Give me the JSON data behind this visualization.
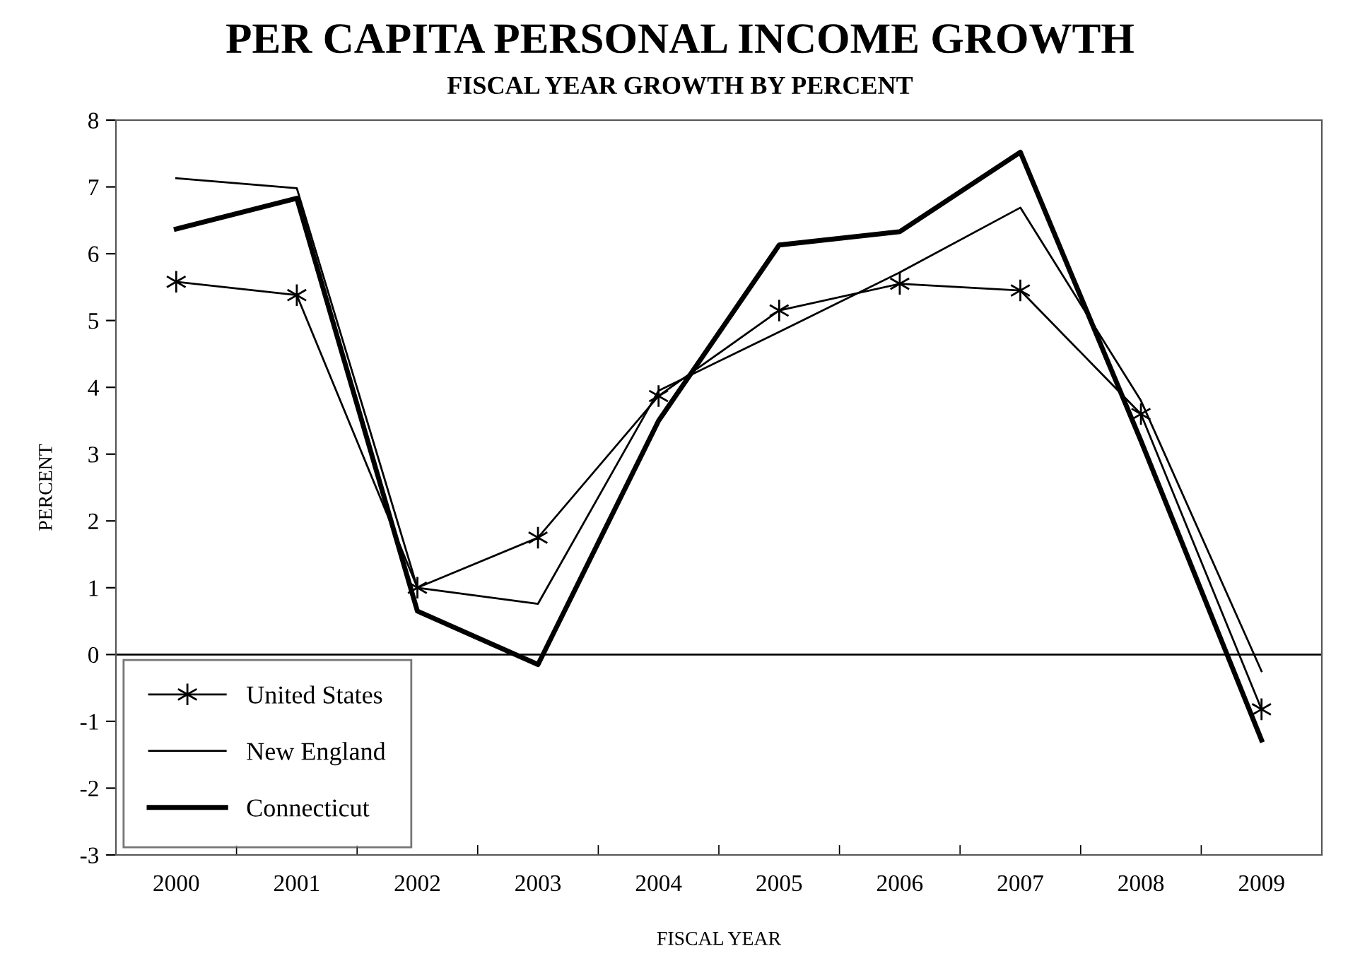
{
  "chart_data": {
    "type": "line",
    "title": "PER CAPITA PERSONAL INCOME GROWTH",
    "subtitle": "FISCAL YEAR GROWTH BY PERCENT",
    "xlabel": "FISCAL YEAR",
    "ylabel": "PERCENT",
    "categories": [
      "2000",
      "2001",
      "2002",
      "2003",
      "2004",
      "2005",
      "2006",
      "2007",
      "2008",
      "2009"
    ],
    "series": [
      {
        "name": "United States",
        "color": "#000000",
        "marker": "cross",
        "values": [
          5.58,
          5.38,
          1.0,
          1.75,
          3.87,
          5.15,
          5.55,
          5.45,
          3.6,
          -0.82
        ]
      },
      {
        "name": "New England",
        "color": "#000000",
        "marker": "none",
        "values": [
          7.13,
          6.98,
          1.0,
          0.76,
          3.95,
          4.83,
          5.72,
          6.69,
          3.8,
          -0.25
        ]
      },
      {
        "name": "Connecticut",
        "color": "#000000",
        "marker": "none",
        "values": [
          6.37,
          6.83,
          0.65,
          -0.15,
          3.5,
          6.13,
          6.33,
          7.52,
          3.2,
          -1.28
        ]
      }
    ],
    "ylim": [
      -3,
      8
    ],
    "yticks": [
      -3,
      -2,
      -1,
      0,
      1,
      2,
      3,
      4,
      5,
      6,
      7,
      8
    ],
    "ref_lines": [
      {
        "axis": "y",
        "value": 0,
        "label": null,
        "color": "#000000"
      }
    ],
    "grid": false,
    "legend": "bottom left",
    "line_style": "solid"
  }
}
